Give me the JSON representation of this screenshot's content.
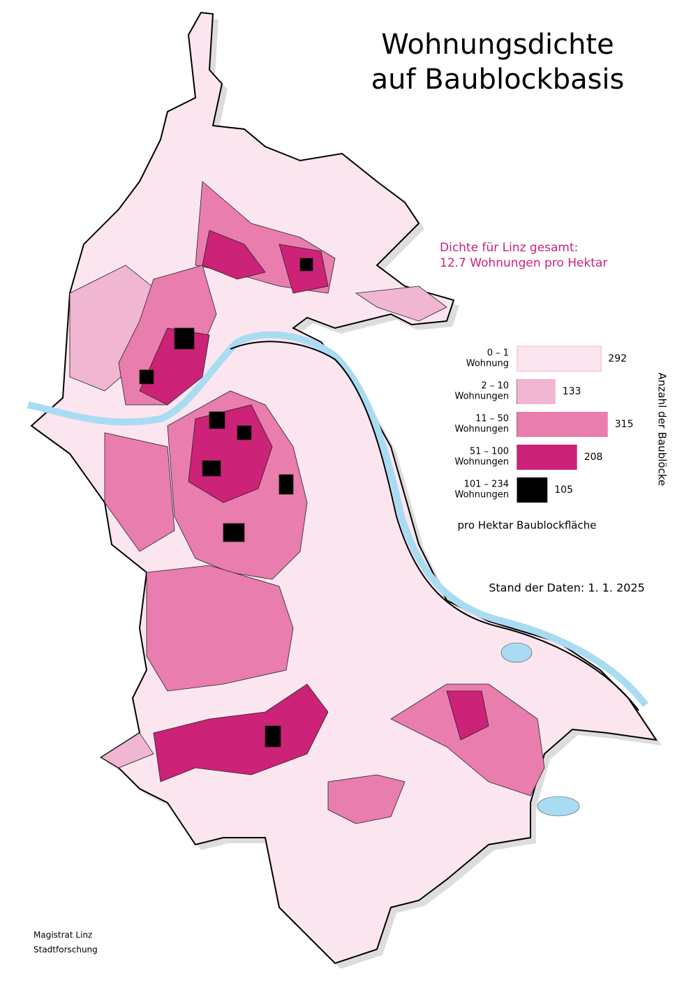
{
  "title": [
    "Wohnungsdichte",
    "auf Baublockbasis"
  ],
  "density_note": [
    "Dichte für Linz gesamt:",
    "12.7 Wohnungen pro Hektar"
  ],
  "legend": {
    "items": [
      {
        "range": "0 – 1",
        "unit": "Wohnung",
        "count": 292,
        "color": "#fbe6ef"
      },
      {
        "range": "2 – 10",
        "unit": "Wohnungen",
        "count": 133,
        "color": "#f1b6d1"
      },
      {
        "range": "11 – 50",
        "unit": "Wohnungen",
        "count": 315,
        "color": "#e97dae"
      },
      {
        "range": "51 – 100",
        "unit": "Wohnungen",
        "count": 208,
        "color": "#cc2277"
      },
      {
        "range": "101 – 234",
        "unit": "Wohnungen",
        "count": 105,
        "color": "#000000"
      }
    ],
    "axis_label": "Anzahl der Baublöcke",
    "unit_note": "pro Hektar Baublockfläche"
  },
  "data_date": "Stand der Daten: 1. 1. 2025",
  "footer": [
    "Magistrat Linz",
    "Stadtforschung"
  ]
}
